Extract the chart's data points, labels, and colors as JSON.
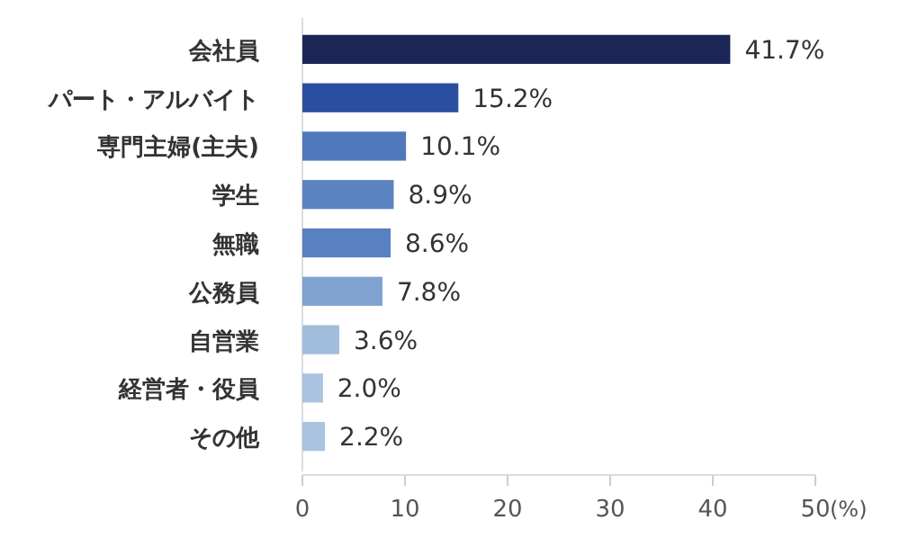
{
  "chart_data": {
    "type": "bar",
    "orientation": "horizontal",
    "categories": [
      "会社員",
      "パート・アルバイト",
      "専門主婦(主夫)",
      "学生",
      "無職",
      "公務員",
      "自営業",
      "経営者・役員",
      "その他"
    ],
    "values": [
      41.7,
      15.2,
      10.1,
      8.9,
      8.6,
      7.8,
      3.6,
      2.0,
      2.2
    ],
    "value_labels": [
      "41.7%",
      "15.2%",
      "10.1%",
      "8.9%",
      "8.6%",
      "7.8%",
      "3.6%",
      "2.0%",
      "2.2%"
    ],
    "colors": [
      "#1b2556",
      "#2a4f9f",
      "#4f78bd",
      "#5a83c1",
      "#5880c2",
      "#7fa2cf",
      "#a2bddc",
      "#a9c3e0",
      "#a9c3e0"
    ],
    "xlim": [
      0,
      50
    ],
    "xticks": [
      0,
      10,
      20,
      30,
      40,
      50
    ],
    "xlabel": "(%)",
    "grid": false
  }
}
